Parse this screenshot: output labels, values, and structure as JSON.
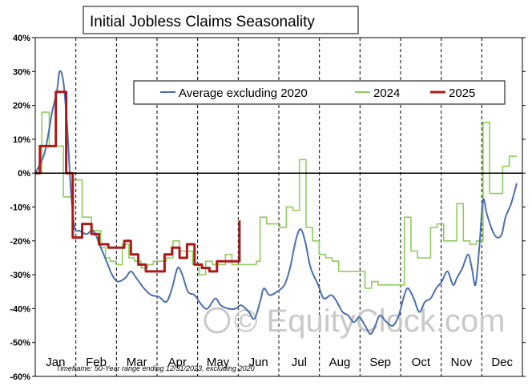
{
  "chart_data": {
    "type": "line",
    "title": "Initial Jobless Claims Seasonality",
    "ylim": [
      -60,
      40
    ],
    "yticks": [
      "40%",
      "30%",
      "20%",
      "10%",
      "0%",
      "-10%",
      "-20%",
      "-30%",
      "-40%",
      "-50%",
      "-60%"
    ],
    "ytick_values": [
      40,
      30,
      20,
      10,
      0,
      -10,
      -20,
      -30,
      -40,
      -50,
      -60
    ],
    "months": [
      "Jan",
      "Feb",
      "Mar",
      "Apr",
      "May",
      "Jun",
      "Jul",
      "Aug",
      "Sep",
      "Oct",
      "Nov",
      "Dec"
    ],
    "x_unit": "week of year",
    "xlim": [
      0,
      52
    ],
    "legend_position": "top-right",
    "footnote": "Timeframe: 50-Year range ending 12/31/2023, excluding 2020",
    "watermark": "© EquityClock.com",
    "series": [
      {
        "name": "Average excluding 2020",
        "color": "#4a6faf",
        "style": "smooth",
        "points": [
          [
            0,
            0
          ],
          [
            1,
            6
          ],
          [
            1.8,
            18
          ],
          [
            2.3,
            24
          ],
          [
            2.6,
            30
          ],
          [
            3,
            27
          ],
          [
            3.4,
            14
          ],
          [
            3.8,
            -5
          ],
          [
            4.2,
            -16
          ],
          [
            4.7,
            -17
          ],
          [
            5.5,
            -18
          ],
          [
            6.2,
            -17
          ],
          [
            7,
            -22
          ],
          [
            7.6,
            -26
          ],
          [
            8.2,
            -30
          ],
          [
            8.8,
            -32
          ],
          [
            9.6,
            -31
          ],
          [
            10.2,
            -29
          ],
          [
            10.8,
            -31
          ],
          [
            11.6,
            -34
          ],
          [
            12.4,
            -36
          ],
          [
            13.2,
            -36.5
          ],
          [
            14,
            -38
          ],
          [
            14.6,
            -34
          ],
          [
            15.2,
            -28
          ],
          [
            15.7,
            -30
          ],
          [
            16.3,
            -35
          ],
          [
            17,
            -36
          ],
          [
            17.8,
            -39
          ],
          [
            18.4,
            -40
          ],
          [
            19.2,
            -37
          ],
          [
            19.8,
            -39
          ],
          [
            20.6,
            -40
          ],
          [
            21.4,
            -40
          ],
          [
            22,
            -39
          ],
          [
            22.8,
            -41
          ],
          [
            23.4,
            -43
          ],
          [
            24,
            -38
          ],
          [
            24.4,
            -34
          ],
          [
            25,
            -36
          ],
          [
            25.8,
            -35
          ],
          [
            26.6,
            -33
          ],
          [
            27.2,
            -28
          ],
          [
            27.8,
            -20
          ],
          [
            28.3,
            -16.5
          ],
          [
            28.8,
            -20
          ],
          [
            29.4,
            -28
          ],
          [
            30.2,
            -33
          ],
          [
            30.8,
            -37
          ],
          [
            31.6,
            -36
          ],
          [
            32.2,
            -38
          ],
          [
            32.8,
            -41
          ],
          [
            33.4,
            -42
          ],
          [
            34,
            -44
          ],
          [
            34.6,
            -42.5
          ],
          [
            35.2,
            -45
          ],
          [
            35.8,
            -47.5
          ],
          [
            36.3,
            -45
          ],
          [
            36.8,
            -42
          ],
          [
            37.5,
            -44
          ],
          [
            38.2,
            -45
          ],
          [
            38.8,
            -42
          ],
          [
            39.4,
            -36
          ],
          [
            39.8,
            -34
          ],
          [
            40.4,
            -37
          ],
          [
            41,
            -41
          ],
          [
            41.6,
            -38
          ],
          [
            42.2,
            -37
          ],
          [
            42.8,
            -34
          ],
          [
            43.4,
            -32
          ],
          [
            44,
            -29
          ],
          [
            44.6,
            -33
          ],
          [
            45,
            -31
          ],
          [
            45.6,
            -28
          ],
          [
            46.2,
            -24
          ],
          [
            46.6,
            -28
          ],
          [
            47,
            -33
          ],
          [
            47.4,
            -22
          ],
          [
            47.8,
            -8
          ],
          [
            48.2,
            -12
          ],
          [
            48.8,
            -17
          ],
          [
            49.3,
            -19
          ],
          [
            49.8,
            -18
          ],
          [
            50.2,
            -13
          ],
          [
            50.8,
            -9
          ],
          [
            51.4,
            -3
          ]
        ]
      },
      {
        "name": "2024",
        "color": "#8fcd5c",
        "style": "step",
        "points": [
          [
            0,
            0
          ],
          [
            0.7,
            18
          ],
          [
            1.5,
            8
          ],
          [
            2.5,
            8
          ],
          [
            3,
            -7
          ],
          [
            4,
            -2
          ],
          [
            5,
            -13
          ],
          [
            6,
            -17
          ],
          [
            7,
            -22
          ],
          [
            7.5,
            -25
          ],
          [
            8,
            -26
          ],
          [
            8.6,
            -27
          ],
          [
            9.3,
            -21
          ],
          [
            10,
            -25
          ],
          [
            10.6,
            -26
          ],
          [
            11.3,
            -28
          ],
          [
            12,
            -27
          ],
          [
            12.6,
            -26
          ],
          [
            13.3,
            -26
          ],
          [
            14,
            -25
          ],
          [
            14.7,
            -20
          ],
          [
            15.4,
            -23
          ],
          [
            16.1,
            -23
          ],
          [
            16.8,
            -27
          ],
          [
            17.5,
            -30
          ],
          [
            18.2,
            -26
          ],
          [
            18.9,
            -27
          ],
          [
            19.6,
            -27
          ],
          [
            20.3,
            -24
          ],
          [
            21,
            -27
          ],
          [
            21.7,
            -27
          ],
          [
            22.4,
            -27
          ],
          [
            23.1,
            -27
          ],
          [
            23.6,
            -26
          ],
          [
            24,
            -13
          ],
          [
            24.7,
            -15
          ],
          [
            25.4,
            -15
          ],
          [
            26.1,
            -16
          ],
          [
            26.8,
            -10
          ],
          [
            27.5,
            -11
          ],
          [
            28.2,
            4
          ],
          [
            28.9,
            -16
          ],
          [
            29.6,
            -20
          ],
          [
            30.3,
            -24
          ],
          [
            31,
            -25
          ],
          [
            31.7,
            -26
          ],
          [
            32.4,
            -29
          ],
          [
            33.1,
            -29
          ],
          [
            33.8,
            -29
          ],
          [
            34.5,
            -29
          ],
          [
            35.2,
            -34
          ],
          [
            35.9,
            -32
          ],
          [
            36.6,
            -33
          ],
          [
            37.3,
            -33
          ],
          [
            38,
            -33
          ],
          [
            38.7,
            -33
          ],
          [
            39.4,
            -13
          ],
          [
            40.1,
            -23
          ],
          [
            40.8,
            -25
          ],
          [
            41.5,
            -25
          ],
          [
            42.2,
            -16
          ],
          [
            42.9,
            -15
          ],
          [
            43.6,
            -20
          ],
          [
            44.3,
            -20
          ],
          [
            45,
            -9
          ],
          [
            45.7,
            -20
          ],
          [
            46.4,
            -21
          ],
          [
            47.1,
            -20
          ],
          [
            47.8,
            15
          ],
          [
            48.5,
            -6
          ],
          [
            49.2,
            -6
          ],
          [
            49.9,
            2
          ],
          [
            50.6,
            5
          ],
          [
            51.4,
            5
          ]
        ]
      },
      {
        "name": "2025",
        "color": "#aa1a1a",
        "style": "step",
        "points": [
          [
            0,
            0
          ],
          [
            0.5,
            8
          ],
          [
            1.5,
            8
          ],
          [
            2.2,
            24
          ],
          [
            3.3,
            0
          ],
          [
            4,
            -19
          ],
          [
            5,
            -15
          ],
          [
            6,
            -18
          ],
          [
            6.8,
            -21
          ],
          [
            7.8,
            -22
          ],
          [
            8.8,
            -22
          ],
          [
            9.5,
            -20
          ],
          [
            10.2,
            -24
          ],
          [
            11,
            -27
          ],
          [
            11.8,
            -29
          ],
          [
            13,
            -29
          ],
          [
            13.8,
            -24
          ],
          [
            14.6,
            -22
          ],
          [
            15.4,
            -25
          ],
          [
            16.2,
            -21
          ],
          [
            17,
            -27
          ],
          [
            17.8,
            -28
          ],
          [
            18.6,
            -29
          ],
          [
            19.4,
            -26
          ],
          [
            20.2,
            -26
          ],
          [
            21,
            -26
          ],
          [
            21.8,
            -14
          ]
        ]
      }
    ]
  }
}
